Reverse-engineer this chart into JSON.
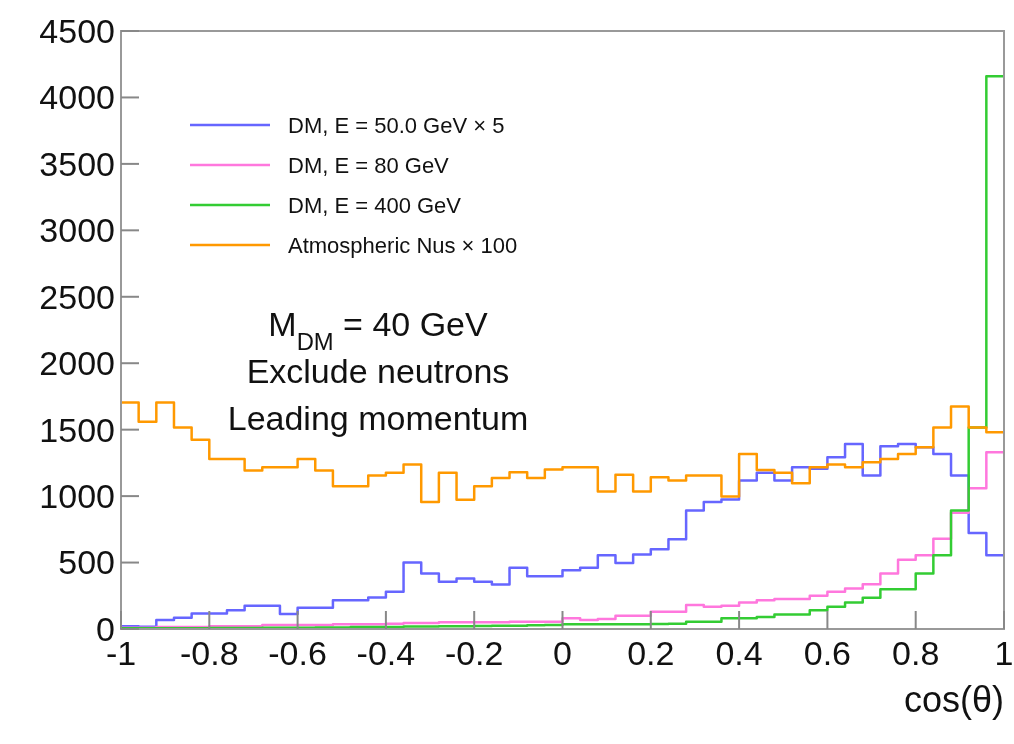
{
  "chart_data": {
    "type": "histogram",
    "xlabel": "cos(θ)",
    "annotations": [
      "M$_{DM}$ = 40 GeV",
      "Exclude neutrons",
      "Leading momentum"
    ],
    "bins": [
      -1,
      -0.96,
      -0.92,
      -0.88,
      -0.84,
      -0.8,
      -0.76,
      -0.72,
      -0.68,
      -0.64,
      -0.6,
      -0.56,
      -0.52,
      -0.48,
      -0.44,
      -0.4,
      -0.36,
      -0.32,
      -0.28,
      -0.24,
      -0.2,
      -0.16,
      -0.12,
      -0.08,
      -0.04,
      0,
      0.04,
      0.08,
      0.12,
      0.16,
      0.2,
      0.24,
      0.28,
      0.32,
      0.36,
      0.4,
      0.44,
      0.48,
      0.52,
      0.56,
      0.6,
      0.64,
      0.68,
      0.72,
      0.76,
      0.8,
      0.84,
      0.88,
      0.92,
      0.96,
      1
    ],
    "series": [
      {
        "name": "DM, E = 50.0 GeV × 5",
        "color": "#6666ff",
        "values": [
          20,
          17,
          67,
          85,
          117,
          117,
          142,
          175,
          175,
          112,
          160,
          160,
          217,
          217,
          237,
          280,
          500,
          417,
          355,
          380,
          355,
          335,
          460,
          397,
          397,
          442,
          460,
          555,
          497,
          560,
          600,
          675,
          892,
          955,
          975,
          1117,
          1175,
          1117,
          1217,
          1205,
          1292,
          1392,
          1155,
          1375,
          1392,
          1367,
          1317,
          1155,
          722,
          555
        ]
      },
      {
        "name": "DM, E = 80 GeV",
        "color": "#ff77dd",
        "values": [
          10,
          10,
          15,
          15,
          15,
          20,
          20,
          20,
          30,
          30,
          30,
          30,
          35,
          35,
          35,
          40,
          45,
          45,
          50,
          50,
          50,
          50,
          55,
          55,
          55,
          80,
          67,
          75,
          100,
          100,
          130,
          130,
          180,
          167,
          175,
          200,
          217,
          225,
          225,
          250,
          280,
          305,
          337,
          417,
          522,
          555,
          680,
          875,
          1060,
          1330
        ]
      },
      {
        "name": "DM, E = 400 GeV",
        "color": "#33cc33",
        "values": [
          5,
          5,
          5,
          5,
          5,
          8,
          8,
          8,
          10,
          10,
          10,
          12,
          12,
          15,
          15,
          15,
          18,
          18,
          20,
          20,
          22,
          25,
          25,
          28,
          30,
          35,
          35,
          35,
          35,
          35,
          37,
          40,
          55,
          55,
          80,
          80,
          90,
          110,
          110,
          142,
          167,
          200,
          235,
          300,
          300,
          417,
          555,
          892,
          1517,
          4160
        ]
      },
      {
        "name": "Atmospheric Nus × 100",
        "color": "#ff9900",
        "values": [
          1705,
          1560,
          1705,
          1517,
          1425,
          1280,
          1280,
          1192,
          1217,
          1217,
          1280,
          1192,
          1075,
          1075,
          1155,
          1175,
          1237,
          955,
          1175,
          972,
          1075,
          1137,
          1180,
          1137,
          1200,
          1217,
          1217,
          1035,
          1160,
          1035,
          1142,
          1117,
          1155,
          1155,
          997,
          1317,
          1197,
          1175,
          1097,
          1217,
          1237,
          1217,
          1255,
          1280,
          1317,
          1367,
          1517,
          1675,
          1517,
          1480
        ]
      }
    ],
    "xlim": [
      -1,
      1
    ],
    "xticks": [
      -1,
      -0.8,
      -0.6,
      -0.4,
      -0.2,
      0,
      0.2,
      0.4,
      0.6,
      0.8,
      1
    ],
    "ylim": [
      0,
      4500
    ],
    "yticks": [
      0,
      500,
      1000,
      1500,
      2000,
      2500,
      3000,
      3500,
      4000,
      4500
    ],
    "legend": "top left",
    "grid": false
  }
}
